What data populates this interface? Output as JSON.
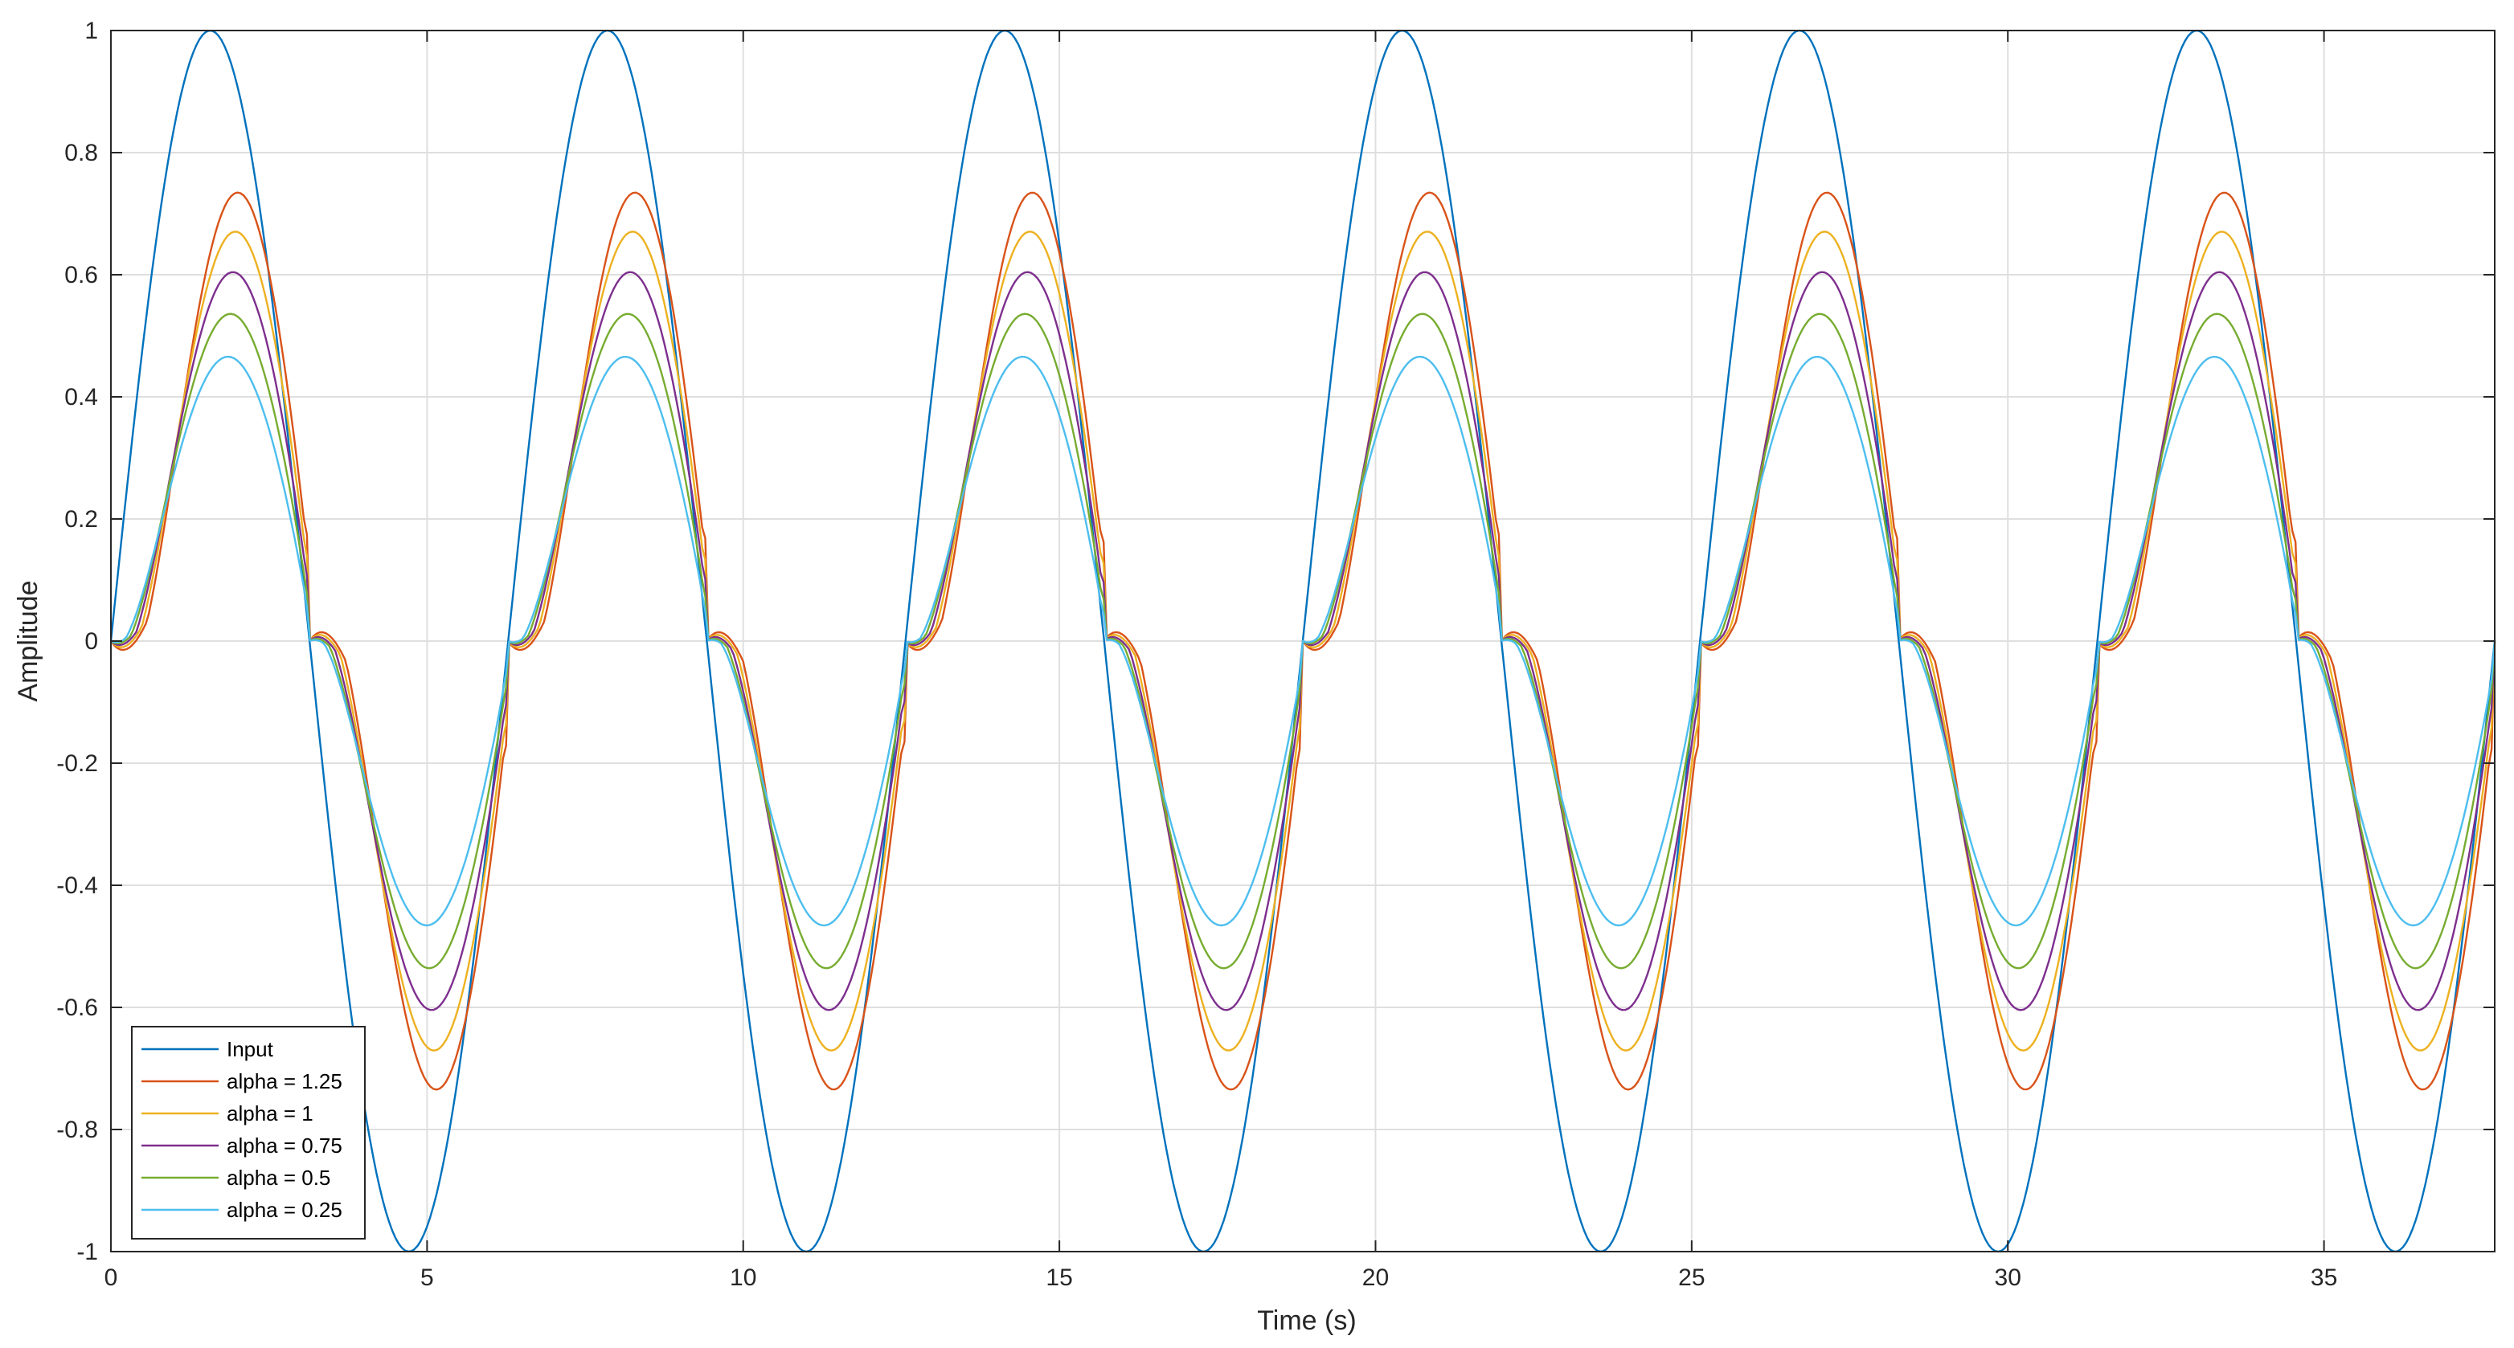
{
  "chart_data": {
    "type": "line",
    "title": "",
    "xlabel": "Time (s)",
    "ylabel": "Amplitude",
    "xlim": [
      0,
      37.7
    ],
    "ylim": [
      -1,
      1
    ],
    "xticks": [
      0,
      5,
      10,
      15,
      20,
      25,
      30,
      35
    ],
    "yticks": [
      -1,
      -0.8,
      -0.6,
      -0.4,
      -0.2,
      0,
      0.2,
      0.4,
      0.6,
      0.8,
      1
    ],
    "xtick_labels": [
      "0",
      "5",
      "10",
      "15",
      "20",
      "25",
      "30",
      "35"
    ],
    "ytick_labels": [
      "-1",
      "-0.8",
      "-0.6",
      "-0.4",
      "-0.2",
      "0",
      "0.2",
      "0.4",
      "0.6",
      "0.8",
      "1"
    ],
    "grid": true,
    "legend_position": "bottom-left",
    "input_signal": "sin(t)",
    "sample_step": 0.05,
    "series": [
      {
        "name": "Input",
        "kind": "input",
        "color": "#0072BD"
      },
      {
        "name": "alpha = 1.25",
        "kind": "fractional",
        "alpha": 1.25,
        "color": "#D95319"
      },
      {
        "name": "alpha = 1",
        "kind": "fractional",
        "alpha": 1,
        "color": "#EDB120"
      },
      {
        "name": "alpha = 0.75",
        "kind": "fractional",
        "alpha": 0.75,
        "color": "#7E2F8E"
      },
      {
        "name": "alpha = 0.5",
        "kind": "fractional",
        "alpha": 0.5,
        "color": "#77AC30"
      },
      {
        "name": "alpha = 0.25",
        "kind": "fractional",
        "alpha": 0.25,
        "color": "#4DBEEE"
      }
    ],
    "summary_points": {
      "positive_peaks": [
        {
          "series": "Input",
          "x": 1.57,
          "y": 1.0
        },
        {
          "series": "alpha = 1.25",
          "x": 2.45,
          "y": 0.88
        },
        {
          "series": "alpha = 1",
          "x": 2.36,
          "y": 0.76
        },
        {
          "series": "alpha = 0.75",
          "x": 2.15,
          "y": 0.66
        },
        {
          "series": "alpha = 0.5",
          "x": 2.0,
          "y": 0.59
        },
        {
          "series": "alpha = 0.25",
          "x": 1.8,
          "y": 0.54
        }
      ],
      "negative_peaks": [
        {
          "series": "Input",
          "x": 4.71,
          "y": -1.0
        },
        {
          "series": "alpha = 1.25",
          "x": 5.6,
          "y": -0.87
        },
        {
          "series": "alpha = 1",
          "x": 5.5,
          "y": -0.76
        },
        {
          "series": "alpha = 0.75",
          "x": 5.3,
          "y": -0.67
        },
        {
          "series": "alpha = 0.5",
          "x": 5.1,
          "y": -0.6
        },
        {
          "series": "alpha = 0.25",
          "x": 4.9,
          "y": -0.55
        }
      ]
    }
  }
}
